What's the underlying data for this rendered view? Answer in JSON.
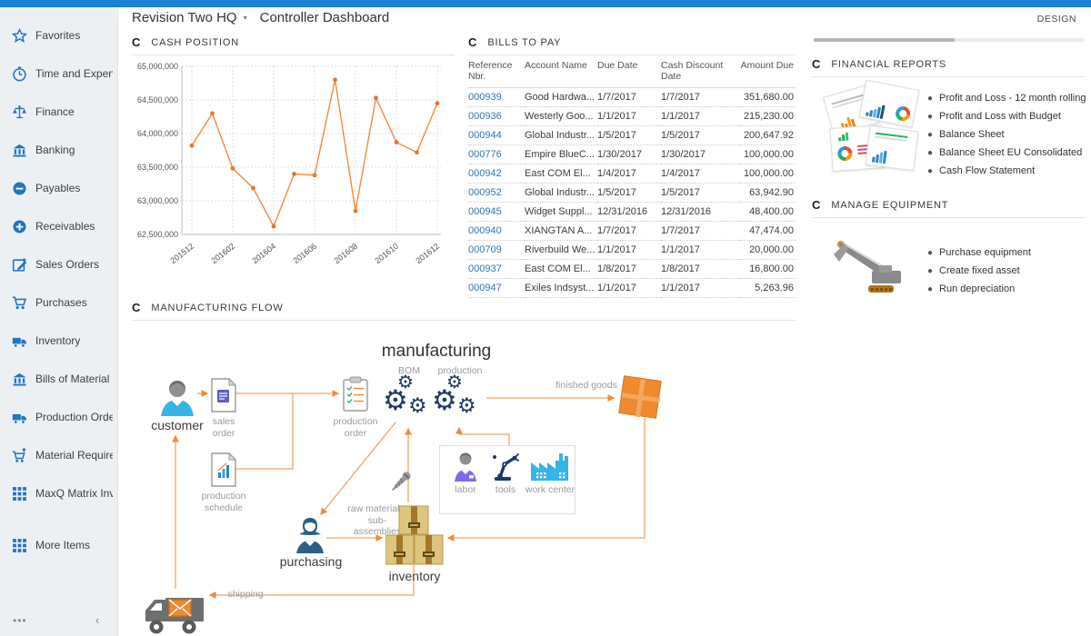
{
  "app": {
    "design_label": "DESIGN",
    "topbar_color": "#1c80d1",
    "accent_blue": "#2374c3",
    "chart_orange": "#f58a3c",
    "arrow_orange": "#f0a264"
  },
  "header": {
    "company": "Revision Two HQ",
    "caret": "▾",
    "page_title": "Controller Dashboard"
  },
  "sidebar": {
    "items": [
      {
        "icon": "star",
        "label": "Favorites"
      },
      {
        "icon": "clock",
        "label": "Time and Expenses"
      },
      {
        "icon": "scales",
        "label": "Finance"
      },
      {
        "icon": "bank",
        "label": "Banking"
      },
      {
        "icon": "minus-circle",
        "label": "Payables"
      },
      {
        "icon": "plus-circle",
        "label": "Receivables"
      },
      {
        "icon": "edit",
        "label": "Sales Orders"
      },
      {
        "icon": "cart",
        "label": "Purchases"
      },
      {
        "icon": "truck",
        "label": "Inventory"
      },
      {
        "icon": "bank",
        "label": "Bills of Material"
      },
      {
        "icon": "truck",
        "label": "Production Orders"
      },
      {
        "icon": "cart-up",
        "label": "Material Requirem..."
      },
      {
        "icon": "grid",
        "label": "MaxQ Matrix Invent..."
      },
      {
        "icon": "grid",
        "label": "More Items",
        "gap": true
      }
    ],
    "more_label": "•••",
    "collapse_label": "‹"
  },
  "cash_position": {
    "title": "CASH POSITION"
  },
  "chart_data": {
    "type": "line",
    "title": "CASH POSITION",
    "x": [
      "201512",
      "201601",
      "201602",
      "201603",
      "201604",
      "201605",
      "201606",
      "201607",
      "201608",
      "201609",
      "201610",
      "201611",
      "201612"
    ],
    "values": [
      63820000,
      64300000,
      63480000,
      63190000,
      62620000,
      63400000,
      63380000,
      64800000,
      62850000,
      64530000,
      63870000,
      63720000,
      64450000
    ],
    "visible_x_ticks": [
      "201512",
      "201602",
      "201604",
      "201606",
      "201608",
      "201610",
      "201612"
    ],
    "ylim": [
      62500000,
      65000000
    ],
    "y_tick_step": 500000,
    "grid": true,
    "line_color": "#f58a3c",
    "marker_color": "#e9742c"
  },
  "bills_to_pay": {
    "title": "BILLS TO PAY",
    "columns": [
      "Reference Nbr.",
      "Account Name",
      "Due Date",
      "Cash Discount Date",
      "Amount Due"
    ],
    "rows": [
      {
        "ref": "000939",
        "account": "Good Hardwa...",
        "due": "1/7/2017",
        "discount": "1/7/2017",
        "amount": "351,680.00"
      },
      {
        "ref": "000936",
        "account": "Westerly Goo...",
        "due": "1/1/2017",
        "discount": "1/1/2017",
        "amount": "215,230.00"
      },
      {
        "ref": "000944",
        "account": "Global Industr...",
        "due": "1/5/2017",
        "discount": "1/5/2017",
        "amount": "200,647.92"
      },
      {
        "ref": "000776",
        "account": "Empire BlueC...",
        "due": "1/30/2017",
        "discount": "1/30/2017",
        "amount": "100,000.00"
      },
      {
        "ref": "000942",
        "account": "East COM El...",
        "due": "1/4/2017",
        "discount": "1/4/2017",
        "amount": "100,000.00"
      },
      {
        "ref": "000952",
        "account": "Global Industr...",
        "due": "1/5/2017",
        "discount": "1/5/2017",
        "amount": "63,942.90"
      },
      {
        "ref": "000945",
        "account": "Widget Suppl...",
        "due": "12/31/2016",
        "discount": "12/31/2016",
        "amount": "48,400.00"
      },
      {
        "ref": "000940",
        "account": "XIANGTAN A...",
        "due": "1/7/2017",
        "discount": "1/7/2017",
        "amount": "47,474.00"
      },
      {
        "ref": "000709",
        "account": "Riverbuild We...",
        "due": "1/1/2017",
        "discount": "1/1/2017",
        "amount": "20,000.00"
      },
      {
        "ref": "000937",
        "account": "East COM El...",
        "due": "1/8/2017",
        "discount": "1/8/2017",
        "amount": "16,800.00"
      },
      {
        "ref": "000947",
        "account": "Exiles Indsyst...",
        "due": "1/1/2017",
        "discount": "1/1/2017",
        "amount": "5,263.96"
      }
    ]
  },
  "financial_reports": {
    "title": "FINANCIAL REPORTS",
    "links": [
      "Profit and Loss - 12 month rolling",
      "Profit and Loss with Budget",
      "Balance Sheet",
      "Balance Sheet EU Consolidated",
      "Cash Flow Statement"
    ]
  },
  "manage_equipment": {
    "title": "MANAGE EQUIPMENT",
    "links": [
      "Purchase equipment",
      "Create fixed asset",
      "Run depreciation"
    ]
  },
  "manufacturing_flow": {
    "title": "MANUFACTURING FLOW",
    "labels": {
      "manufacturing": "manufacturing",
      "bom": "BOM",
      "production": "production",
      "customer": "customer",
      "sales_order": "sales order",
      "production_order": "production order",
      "production_schedule": "production schedule",
      "raw_materials": "raw materials, sub-assemblies",
      "labor": "labor",
      "tools": "tools",
      "work_center": "work center",
      "finished_goods": "finished goods",
      "purchasing": "purchasing",
      "inventory": "inventory",
      "shipping": "shipping"
    }
  }
}
